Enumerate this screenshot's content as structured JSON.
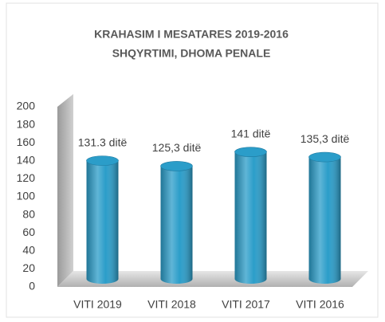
{
  "chart_data": {
    "type": "bar",
    "title": "KRAHASIM I MESATARES 2019-2016",
    "subtitle": "SHQYRTIMI,  DHOMA PENALE",
    "categories": [
      "VITI 2019",
      "VITI 2018",
      "VITI 2017",
      "VITI 2016"
    ],
    "values": [
      131.3,
      125.3,
      141,
      135.3
    ],
    "value_labels": [
      "131.3 ditë",
      "125,3 ditë",
      "141 ditë",
      "135,3 ditë"
    ],
    "color": "#2b9dc9",
    "ylim": [
      0,
      200
    ],
    "yticks": [
      0,
      20,
      40,
      60,
      80,
      100,
      120,
      140,
      160,
      180,
      200
    ],
    "grid": false
  }
}
